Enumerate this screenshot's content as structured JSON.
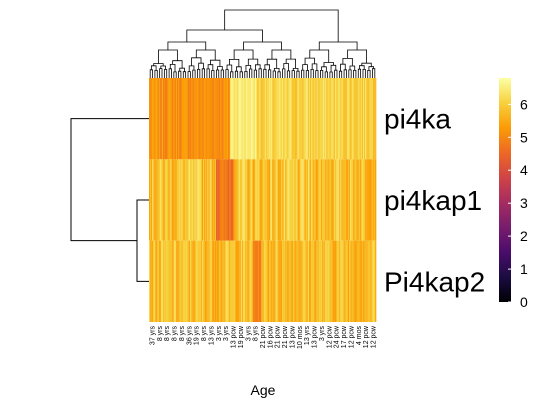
{
  "chart_data": {
    "type": "heatmap",
    "xlabel": "Age",
    "rows": [
      "pi4ka",
      "pi4kap1",
      "Pi4kap2"
    ],
    "column_labels": [
      "37 yrs",
      "8 yrs",
      "8 yrs",
      "8 yrs",
      "8 yrs",
      "36 yrs",
      "19 yrs",
      "8 yrs",
      "13 yrs",
      "3 yrs",
      "3 yrs",
      "13 pcw",
      "19 pcw",
      "3 yrs",
      "8 yrs",
      "21 pcw",
      "16 pcw",
      "21 pcw",
      "21 pcw",
      "13 pcw",
      "10 mos",
      "13 yrs",
      "13 pcw",
      "3 yrs",
      "12 pcw",
      "24 pcw",
      "17 pcw",
      "12 pcw",
      "4 mos",
      "12 pcw",
      "12 pcw"
    ],
    "color_scale": {
      "min": 0,
      "max": 6.8,
      "ticks": [
        0,
        1,
        2,
        3,
        4,
        5,
        6
      ],
      "colors": [
        "#000004",
        "#1b0c41",
        "#4a0c6b",
        "#781c6d",
        "#a52c60",
        "#cf4446",
        "#ed6925",
        "#fb9b06",
        "#f7d13d",
        "#fcffa4"
      ]
    },
    "mean_expression": {
      "pi4ka": 5.4,
      "pi4kap1": 6.1,
      "Pi4kap2": 6.2
    },
    "row_dendrogram": true,
    "column_dendrogram": true
  }
}
